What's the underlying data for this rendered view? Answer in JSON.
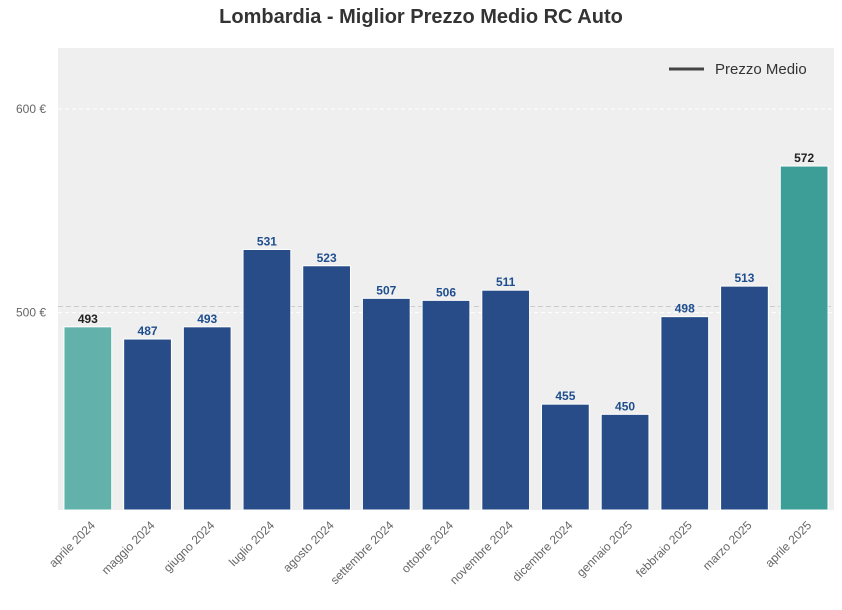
{
  "chart_data": {
    "type": "bar",
    "title": "Lombardia - Miglior Prezzo Medio RC Auto",
    "categories": [
      "aprile 2024",
      "maggio 2024",
      "giugno 2024",
      "luglio 2024",
      "agosto 2024",
      "settembre 2024",
      "ottobre 2024",
      "novembre 2024",
      "dicembre 2024",
      "gennaio 2025",
      "febbraio 2025",
      "marzo 2025",
      "aprile 2025"
    ],
    "values": [
      493,
      487,
      493,
      531,
      523,
      507,
      506,
      511,
      455,
      450,
      498,
      513,
      572
    ],
    "bar_colors": [
      "#62b1ab",
      "#274c87",
      "#274c87",
      "#274c87",
      "#274c87",
      "#274c87",
      "#274c87",
      "#274c87",
      "#274c87",
      "#274c87",
      "#274c87",
      "#274c87",
      "#3c9e97"
    ],
    "label_colors": [
      "#222222",
      "#1f4e8e",
      "#1f4e8e",
      "#1f4e8e",
      "#1f4e8e",
      "#1f4e8e",
      "#1f4e8e",
      "#1f4e8e",
      "#1f4e8e",
      "#1f4e8e",
      "#1f4e8e",
      "#1f4e8e",
      "#222222"
    ],
    "average_line": {
      "name": "Prezzo Medio",
      "value": 503
    },
    "y_ticks": [
      {
        "value": 500,
        "label": "500 €"
      },
      {
        "value": 600,
        "label": "600 €"
      }
    ],
    "ylim": [
      403,
      630
    ],
    "xlabel": "",
    "ylabel": "",
    "grid": true,
    "legend_position": "top-right",
    "colors": {
      "plot_bg": "#efefef",
      "avg_line": "#cccccc",
      "legend_line": "#444444"
    }
  }
}
